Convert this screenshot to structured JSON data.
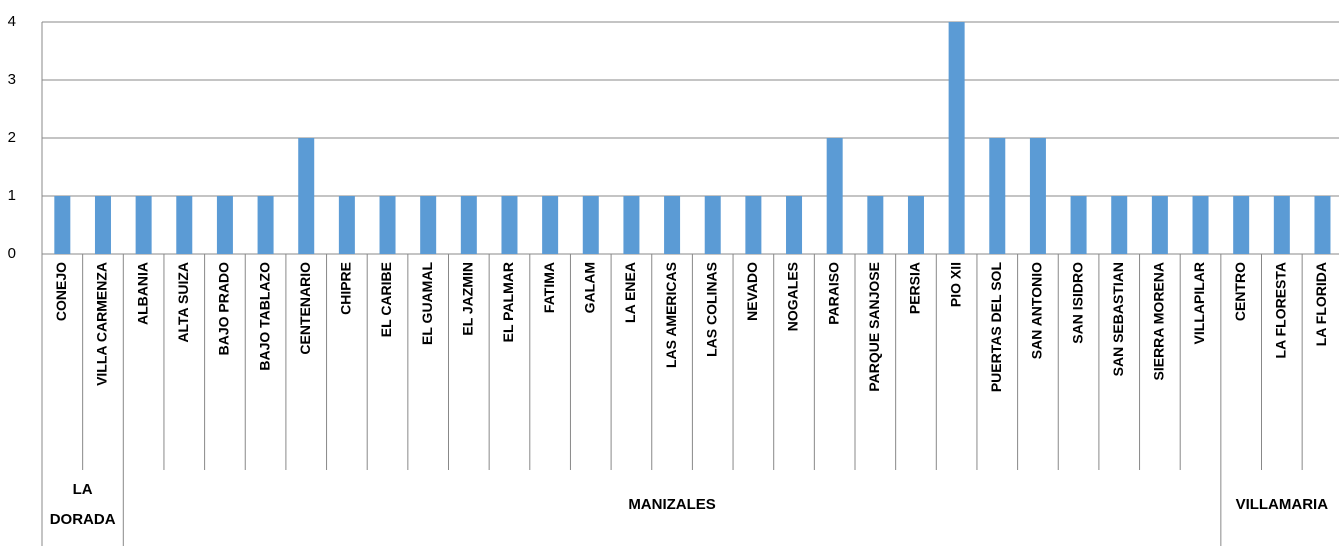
{
  "chart_data": {
    "type": "bar",
    "categories": [
      "CONEJO",
      "VILLA CARMENZA",
      "ALBANIA",
      "ALTA SUIZA",
      "BAJO PRADO",
      "BAJO TABLAZO",
      "CENTENARIO",
      "CHIPRE",
      "EL CARIBE",
      "EL GUAMAL",
      "EL JAZMIN",
      "EL PALMAR",
      "FATIMA",
      "GALAM",
      "LA ENEA",
      "LAS AMERICAS",
      "LAS COLINAS",
      "NEVADO",
      "NOGALES",
      "PARAISO",
      "PARQUE SANJOSE",
      "PERSIA",
      "PIO XII",
      "PUERTAS DEL SOL",
      "SAN ANTONIO",
      "SAN ISIDRO",
      "SAN SEBASTIAN",
      "SIERRA MORENA",
      "VILLAPILAR",
      "CENTRO",
      "LA FLORESTA",
      "LA FLORIDA"
    ],
    "groups": [
      {
        "name": "LA DORADA",
        "count": 2
      },
      {
        "name": "MANIZALES",
        "count": 27
      },
      {
        "name": "VILLAMARIA",
        "count": 3
      }
    ],
    "values": [
      1,
      1,
      1,
      1,
      1,
      1,
      2,
      1,
      1,
      1,
      1,
      1,
      1,
      1,
      1,
      1,
      1,
      1,
      1,
      2,
      1,
      1,
      4,
      2,
      2,
      1,
      1,
      1,
      1,
      1,
      1,
      1
    ],
    "color": "#5b9bd5",
    "ylim": [
      0,
      4
    ],
    "yticks": [
      0,
      1,
      2,
      3,
      4
    ],
    "grid": true
  }
}
